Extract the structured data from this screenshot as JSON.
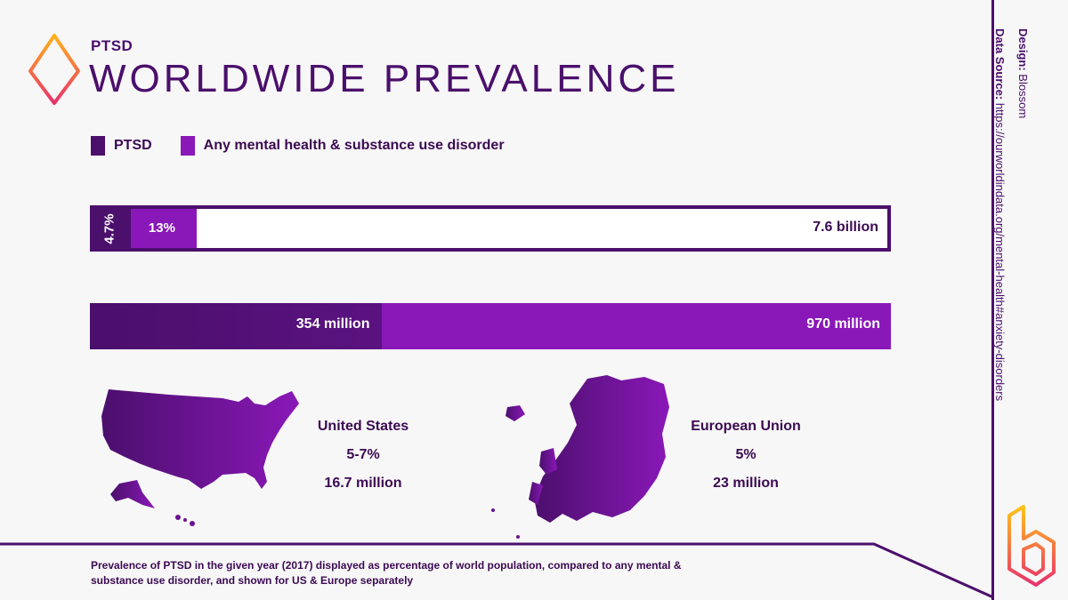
{
  "header": {
    "subtitle": "PTSD",
    "title": "WORLDWIDE PREVALENCE"
  },
  "legend": [
    {
      "label": "PTSD",
      "color": "#4b0f6c"
    },
    {
      "label": "Any mental health & substance use disorder",
      "color": "#8a18b8"
    }
  ],
  "chart_data": {
    "type": "bar",
    "bars": [
      {
        "kind": "percent_of_population",
        "total_label": "7.6 billion",
        "segments": [
          {
            "series": "PTSD",
            "value": 4.7,
            "label": "4.7%"
          },
          {
            "series": "Any mental health & substance use disorder",
            "value": 13,
            "label": "13%"
          }
        ]
      },
      {
        "kind": "absolute",
        "segments": [
          {
            "series": "PTSD",
            "value": 354,
            "label": "354 million"
          },
          {
            "series": "Any mental health & substance use disorder",
            "value": 970,
            "label": "970 million"
          }
        ]
      }
    ]
  },
  "regions": [
    {
      "name": "United States",
      "percent": "5-7%",
      "people": "16.7 million",
      "map": "usa-map"
    },
    {
      "name": "European Union",
      "percent": "5%",
      "people": "23 million",
      "map": "europe-map"
    }
  ],
  "credits": {
    "design_label": "Design:",
    "design_value": "Blossom",
    "source_label": "Data Source:",
    "source_value": "https://ourworldindata.org/mental-health#anxiety-disorders"
  },
  "footer": {
    "note": "Prevalence of PTSD in the given year (2017) displayed as percentage of world population, compared to any mental & substance use disorder, and shown for US & Europe separately"
  },
  "colors": {
    "dark_purple": "#4b0f6c",
    "bright_purple": "#8a18b8",
    "logo_gradient_start": "#ff8c1a",
    "logo_gradient_end": "#e8336d"
  }
}
